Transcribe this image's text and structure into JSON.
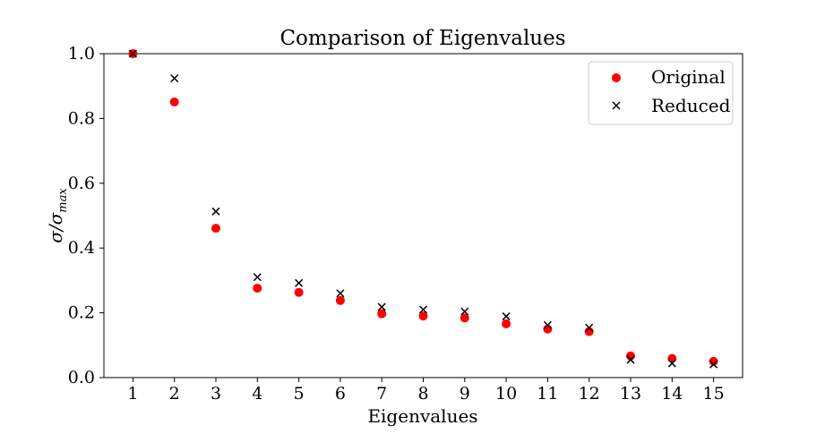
{
  "chart_data": {
    "type": "scatter",
    "title": "Comparison of Eigenvalues",
    "xlabel": "Eigenvalues",
    "ylabel": "σ/σ",
    "ylabel_subscript": "max",
    "xlim": [
      0.3,
      15.7
    ],
    "ylim": [
      0,
      1.0
    ],
    "x_ticks": [
      "1",
      "2",
      "3",
      "4",
      "5",
      "6",
      "7",
      "8",
      "9",
      "10",
      "11",
      "12",
      "13",
      "14",
      "15"
    ],
    "y_ticks": [
      "0.0",
      "0.2",
      "0.4",
      "0.6",
      "0.8",
      "1.0"
    ],
    "grid": false,
    "legend_position": "top-right",
    "x": [
      1,
      2,
      3,
      4,
      5,
      6,
      7,
      8,
      9,
      10,
      11,
      12,
      13,
      14,
      15
    ],
    "series": [
      {
        "name": "Original",
        "marker": "circle",
        "color": "#ff0000",
        "values": [
          1.0,
          0.851,
          0.461,
          0.276,
          0.263,
          0.238,
          0.197,
          0.19,
          0.184,
          0.166,
          0.15,
          0.142,
          0.067,
          0.059,
          0.05
        ]
      },
      {
        "name": "Reduced",
        "marker": "x",
        "color": "#000000",
        "values": [
          1.0,
          0.924,
          0.513,
          0.31,
          0.292,
          0.26,
          0.218,
          0.21,
          0.204,
          0.189,
          0.162,
          0.154,
          0.055,
          0.044,
          0.041
        ]
      }
    ]
  }
}
